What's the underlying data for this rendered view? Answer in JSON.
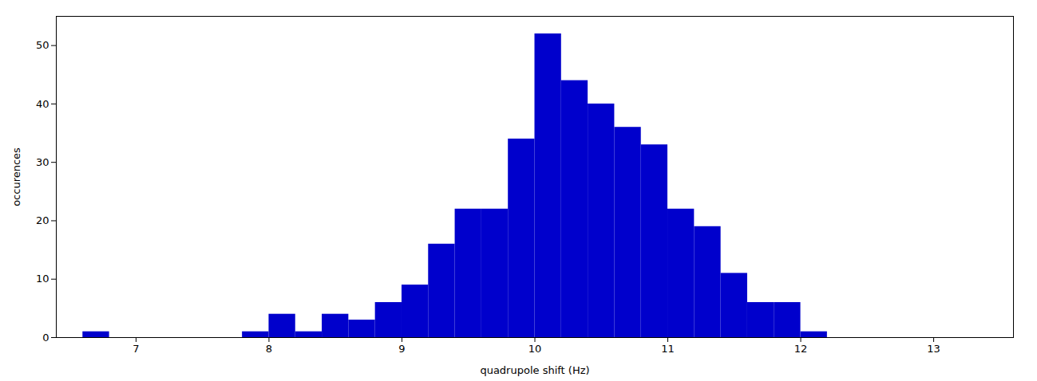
{
  "chart_data": {
    "type": "bar",
    "xlabel": "quadrupole shift (Hz)",
    "ylabel": "occurences",
    "x": [
      6.7,
      7.9,
      8.1,
      8.3,
      8.5,
      8.7,
      8.9,
      9.1,
      9.3,
      9.5,
      9.7,
      9.9,
      10.1,
      10.3,
      10.5,
      10.7,
      10.9,
      11.1,
      11.3,
      11.5,
      11.7,
      11.9,
      12.1
    ],
    "values": [
      1,
      1,
      4,
      1,
      4,
      3,
      6,
      9,
      16,
      22,
      22,
      34,
      52,
      44,
      40,
      36,
      33,
      22,
      19,
      11,
      6,
      6,
      1
    ],
    "bar_width": 0.2,
    "color": "#0000CC",
    "xlim": [
      6.4,
      13.6
    ],
    "ylim": [
      0,
      55
    ],
    "xticks": [
      7,
      8,
      9,
      10,
      11,
      12,
      13
    ],
    "yticks": [
      0,
      10,
      20,
      30,
      40,
      50
    ],
    "grid": false
  }
}
